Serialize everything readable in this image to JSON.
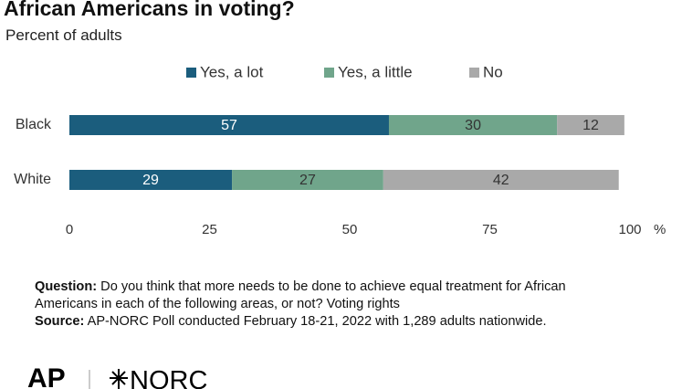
{
  "chart_data": {
    "type": "hbar_stacked",
    "title": "African Americans in voting?",
    "subtitle": "Percent of adults",
    "categories": [
      "Black",
      "White"
    ],
    "series": [
      {
        "name": "Yes, a lot",
        "color": "#1b5d7d",
        "values": [
          57,
          29
        ]
      },
      {
        "name": "Yes, a little",
        "color": "#70a58b",
        "values": [
          30,
          27
        ]
      },
      {
        "name": "No",
        "color": "#a9a9a9",
        "values": [
          12,
          42
        ]
      }
    ],
    "xlim": [
      0,
      100
    ],
    "xticks": [
      0,
      25,
      50,
      75,
      100
    ],
    "x_unit": "%",
    "legend": "top"
  },
  "notes": {
    "question_label": "Question:",
    "question": "Do you think that more needs to be done to achieve equal treatment for African Americans in each of the following areas, or not? Voting rights",
    "source_label": "Source:",
    "source": "AP-NORC Poll conducted February 18-21, 2022 with 1,289 adults nationwide."
  },
  "logos": {
    "left": "AP",
    "right": "NORC"
  }
}
